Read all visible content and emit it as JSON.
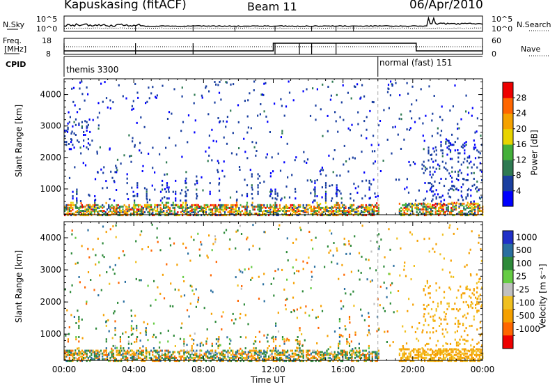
{
  "header": {
    "station": "Kapuskasing (fitACF)",
    "beam": "Beam 11",
    "date": "06/Apr/2010"
  },
  "panels": {
    "nsky_label": "N.Sky",
    "nsearch_label": "N.Search",
    "noise_ticks_left": [
      "10^5",
      "10^0"
    ],
    "noise_ticks_right": [
      "10^5",
      "10^0"
    ],
    "freq_label_1": "Freq.",
    "freq_label_2": "[MHz]",
    "freq_ticks": [
      "18",
      "8"
    ],
    "nave_label": "Nave",
    "nave_ticks": [
      "60",
      "0"
    ],
    "cpid_label": "CPID",
    "cpid_segments": [
      {
        "label": "themis 3300",
        "start": 0,
        "end": 18
      },
      {
        "label": "normal (fast) 151",
        "start": 18,
        "end": 24
      }
    ]
  },
  "x_axis": {
    "title": "Time UT",
    "ticks": [
      "00:00",
      "04:00",
      "08:00",
      "12:00",
      "16:00",
      "20:00",
      "00:00"
    ],
    "range_hours": [
      0,
      24
    ]
  },
  "y_axis": {
    "title": "Slant Range [km]",
    "ticks": [
      "1000",
      "2000",
      "3000",
      "4000"
    ],
    "range_km": [
      180,
      4500
    ]
  },
  "colorbars": {
    "power": {
      "label": "Power [dB]",
      "ticks": [
        "4",
        "8",
        "12",
        "16",
        "20",
        "24",
        "28"
      ],
      "colors": [
        "#0000ff",
        "#1a3fa0",
        "#2e7a52",
        "#44b03a",
        "#e8d400",
        "#f5a200",
        "#ff6600",
        "#ee0000"
      ]
    },
    "velocity": {
      "label": "Velocity [m s⁻¹]",
      "ticks": [
        "1000",
        "500",
        "100",
        "25",
        "-25",
        "-100",
        "-500",
        "-1000"
      ],
      "colors": [
        "#2030c8",
        "#2a6fa0",
        "#2e8a3a",
        "#66cc44",
        "#c0c0c0",
        "#f0c020",
        "#f5a000",
        "#ff6600",
        "#ee0000"
      ]
    }
  },
  "chart_data": [
    {
      "type": "heatmap",
      "title": "",
      "xlabel": "Time UT",
      "ylabel": "Slant Range [km]",
      "colorbar_label": "Power [dB]",
      "xlim_hours": [
        0,
        24
      ],
      "ylim_km": [
        180,
        4500
      ],
      "clim_db": [
        0,
        30
      ],
      "regions": [
        {
          "name": "near-range band",
          "t_hours": [
            0,
            18
          ],
          "range_km": [
            200,
            550
          ],
          "value_db": [
            4,
            28
          ]
        },
        {
          "name": "near-range band",
          "t_hours": [
            19.2,
            24
          ],
          "range_km": [
            200,
            600
          ],
          "value_db": [
            4,
            16
          ]
        },
        {
          "name": "far scatter",
          "t_hours": [
            0,
            1.5
          ],
          "range_km": [
            2300,
            3200
          ],
          "value_db": [
            2,
            6
          ]
        },
        {
          "name": "far scatter",
          "t_hours": [
            20.5,
            24
          ],
          "range_km": [
            500,
            2600
          ],
          "value_db": [
            2,
            10
          ]
        }
      ]
    },
    {
      "type": "heatmap",
      "title": "",
      "xlabel": "Time UT",
      "ylabel": "Slant Range [km]",
      "colorbar_label": "Velocity [m s⁻¹]",
      "xlim_hours": [
        0,
        24
      ],
      "ylim_km": [
        180,
        4500
      ],
      "clim_ms": [
        -1000,
        1000
      ],
      "regions": [
        {
          "name": "near-range band",
          "t_hours": [
            0,
            18
          ],
          "range_km": [
            200,
            550
          ],
          "value_ms": [
            -500,
            500
          ]
        },
        {
          "name": "near-range band",
          "t_hours": [
            19.2,
            24
          ],
          "range_km": [
            200,
            600
          ],
          "value_ms": [
            -100,
            -25
          ]
        },
        {
          "name": "far scatter",
          "t_hours": [
            20.5,
            24
          ],
          "range_km": [
            500,
            2600
          ],
          "value_ms": [
            -500,
            100
          ]
        }
      ]
    }
  ]
}
